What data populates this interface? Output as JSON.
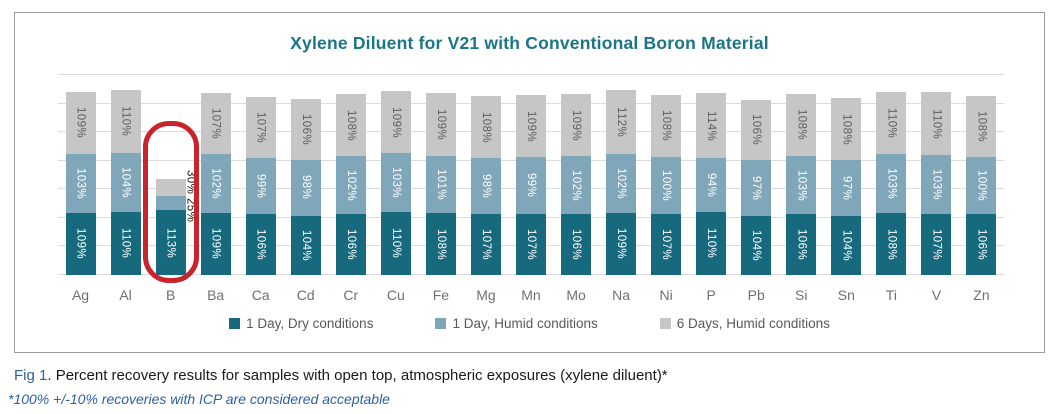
{
  "title": "Xylene Diluent for V21 with Conventional Boron Material",
  "chart_data": {
    "type": "bar",
    "stacked": true,
    "title": "Xylene Diluent for V21 with Conventional Boron Material",
    "categories": [
      "Ag",
      "Al",
      "B",
      "Ba",
      "Ca",
      "Cd",
      "Cr",
      "Cu",
      "Fe",
      "Mg",
      "Mn",
      "Mo",
      "Na",
      "Ni",
      "P",
      "Pb",
      "Si",
      "Sn",
      "Ti",
      "V",
      "Zn"
    ],
    "series": [
      {
        "name": "1 Day, Dry conditions",
        "color": "#17697e",
        "values": [
          109,
          110,
          113,
          109,
          106,
          104,
          106,
          110,
          108,
          107,
          107,
          106,
          109,
          107,
          110,
          104,
          106,
          104,
          108,
          107,
          106
        ]
      },
      {
        "name": "1 Day, Humid conditions",
        "color": "#7fa6b9",
        "values": [
          103,
          104,
          25,
          102,
          99,
          98,
          102,
          103,
          101,
          98,
          99,
          102,
          102,
          100,
          94,
          97,
          103,
          97,
          103,
          103,
          100
        ]
      },
      {
        "name": "6 Days, Humid conditions",
        "color": "#c7c6c6",
        "values": [
          109,
          110,
          30,
          107,
          107,
          106,
          108,
          109,
          109,
          108,
          109,
          109,
          112,
          108,
          114,
          106,
          108,
          108,
          110,
          110,
          108
        ]
      }
    ],
    "value_suffix": "%",
    "ylim": [
      0,
      350
    ],
    "gridline_step": 50,
    "grid": true,
    "legend_position": "bottom",
    "highlighted_category": "B",
    "highlight_color": "#c9232b",
    "bar_label_colors": {
      "on_dark_segment": "#ffffff",
      "on_gray_segment": "#5f5f5f",
      "outside": "#1a1a1a"
    }
  },
  "caption": {
    "prefix": "Fig 1",
    "text": ". Percent recovery results for samples with open top, atmospheric exposures (xylene diluent)*"
  },
  "footnote": "*100% +/-10% recoveries with ICP are considered acceptable"
}
